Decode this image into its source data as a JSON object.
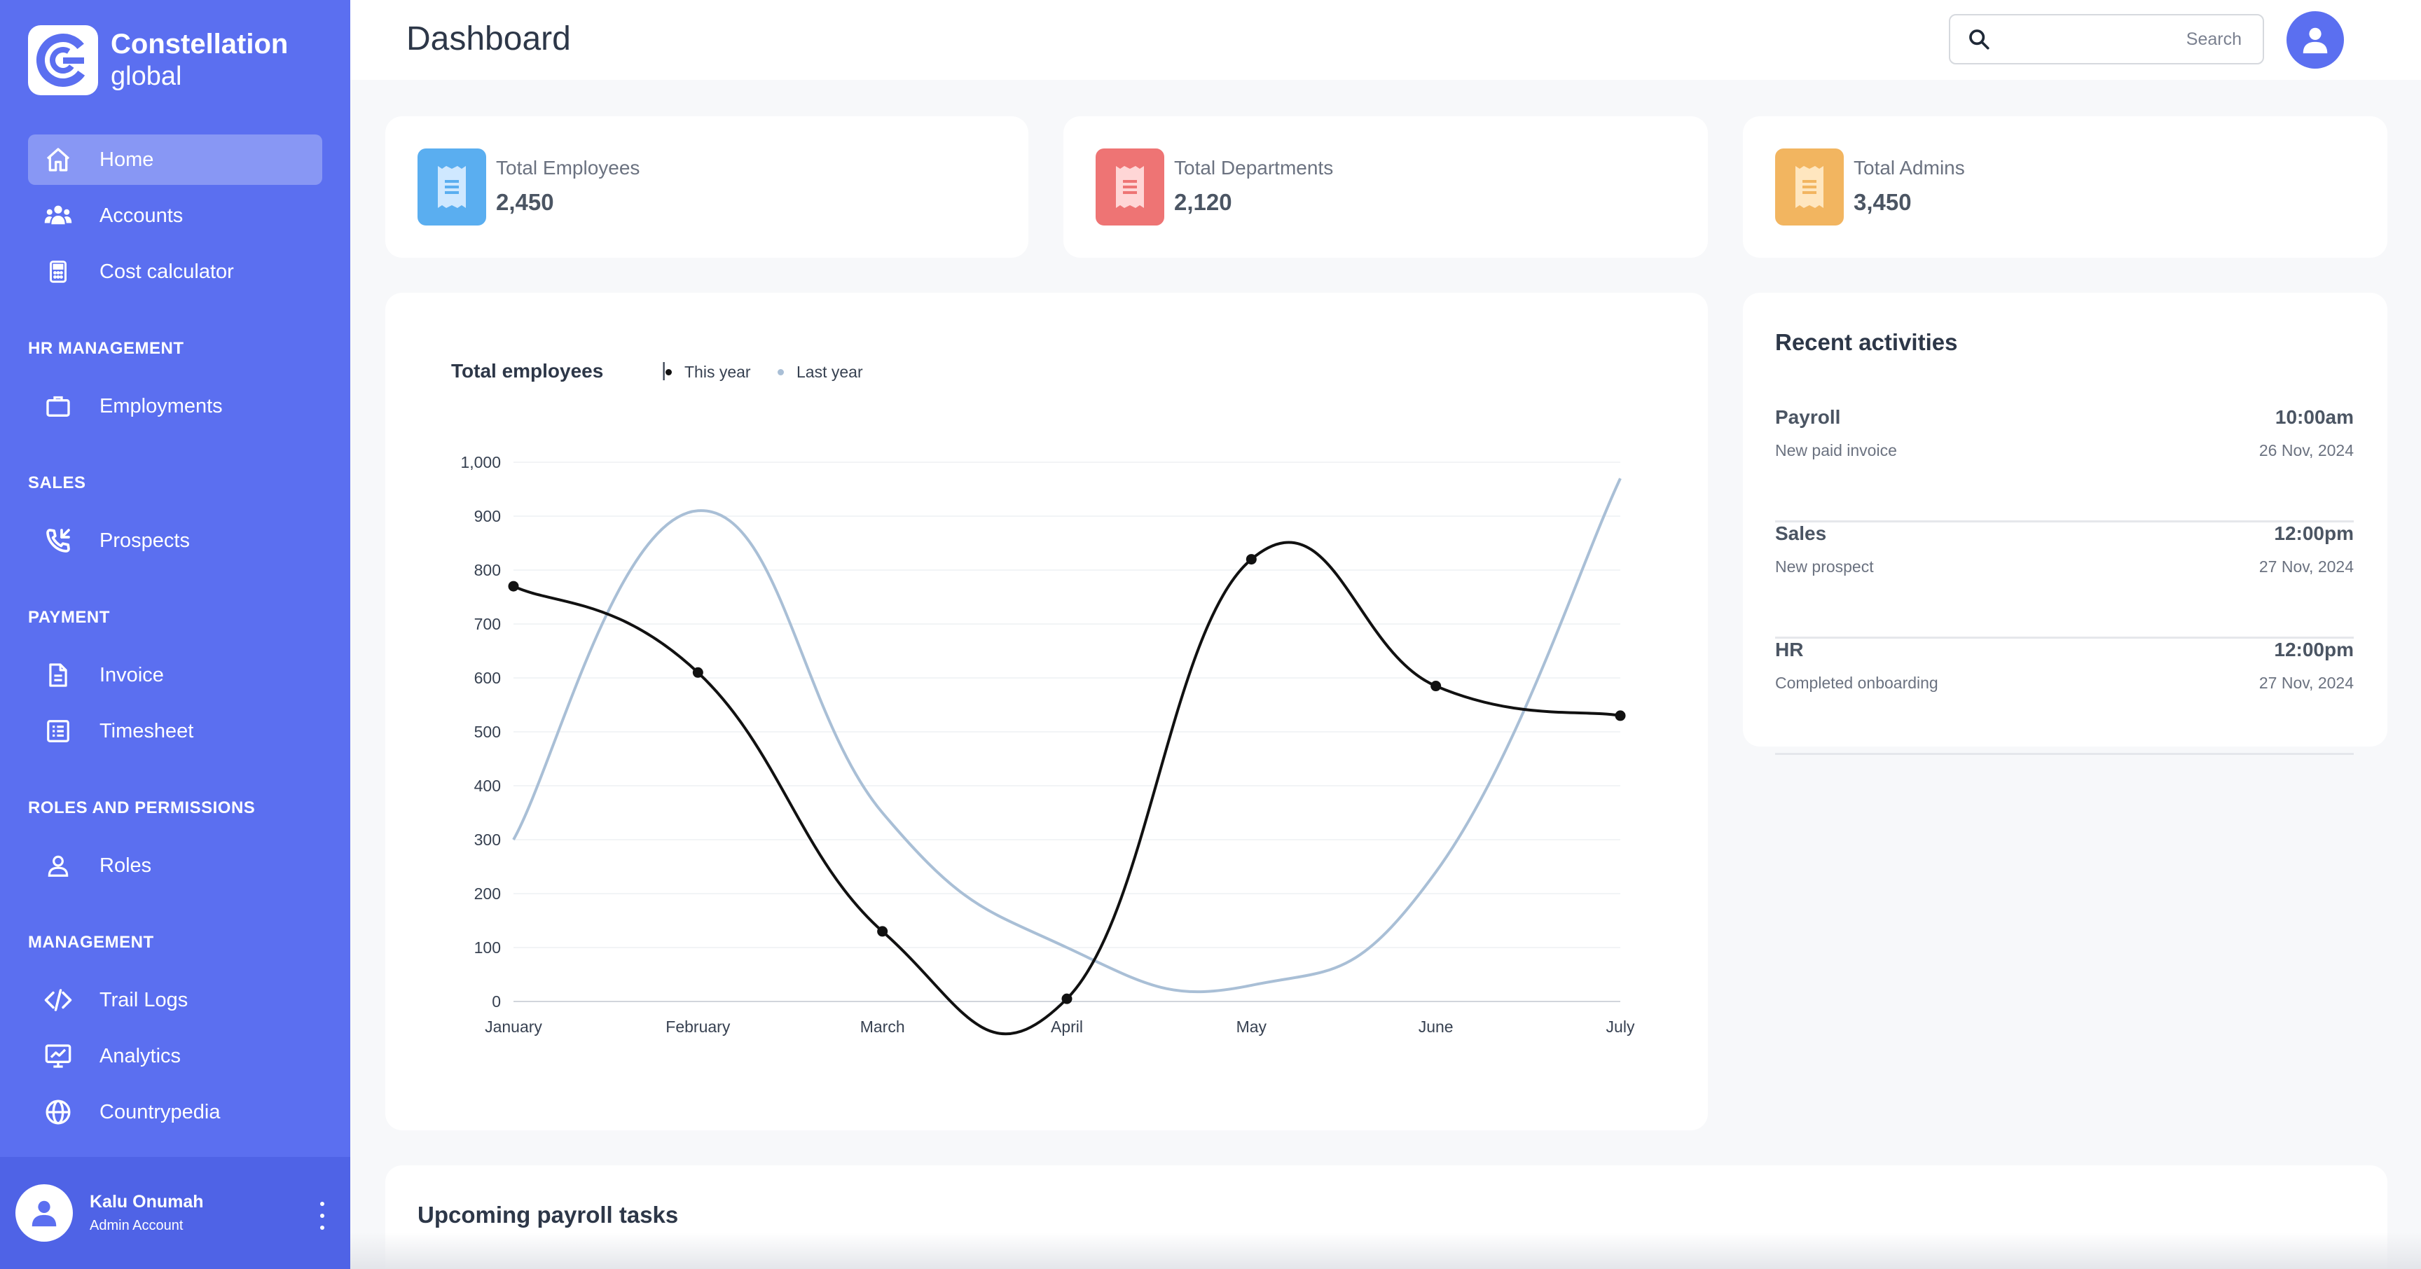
{
  "brand": {
    "name": "Constellation",
    "sub": "global"
  },
  "sidebar": {
    "items": [
      {
        "label": "Home",
        "icon": "home-icon"
      },
      {
        "label": "Accounts",
        "icon": "users-icon"
      },
      {
        "label": "Cost calculator",
        "icon": "calculator-icon"
      },
      {
        "label": "Employments",
        "icon": "briefcase-icon"
      },
      {
        "label": "Prospects",
        "icon": "phone-incoming-icon"
      },
      {
        "label": "Invoice",
        "icon": "document-icon"
      },
      {
        "label": "Timesheet",
        "icon": "list-icon"
      },
      {
        "label": "Roles",
        "icon": "user-icon"
      },
      {
        "label": "Trail Logs",
        "icon": "code-icon"
      },
      {
        "label": "Analytics",
        "icon": "monitor-chart-icon"
      },
      {
        "label": "Countrypedia",
        "icon": "globe-icon"
      }
    ],
    "sections": {
      "hr": "HR MANAGEMENT",
      "sales": "SALES",
      "payment": "PAYMENT",
      "roles": "ROLES AND PERMISSIONS",
      "management": "MANAGEMENT"
    }
  },
  "user": {
    "name": "Kalu Onumah",
    "role": "Admin Account"
  },
  "header": {
    "title": "Dashboard",
    "search_placeholder": "Search"
  },
  "stats": [
    {
      "label": "Total Employees",
      "value": "2,450",
      "color": "#5aaef0"
    },
    {
      "label": "Total Departments",
      "value": "2,120",
      "color": "#ee7474"
    },
    {
      "label": "Total Admins",
      "value": "3,450",
      "color": "#f2b560"
    }
  ],
  "activities": {
    "title": "Recent activities",
    "items": [
      {
        "name": "Payroll",
        "desc": "New paid invoice",
        "time": "10:00am",
        "date": "26 Nov, 2024"
      },
      {
        "name": "Sales",
        "desc": "New prospect",
        "time": "12:00pm",
        "date": "27 Nov, 2024"
      },
      {
        "name": "HR",
        "desc": "Completed onboarding",
        "time": "12:00pm",
        "date": "27 Nov, 2024"
      }
    ]
  },
  "payroll": {
    "title": "Upcoming payroll tasks"
  },
  "chart_data": {
    "type": "line",
    "title": "Total employees",
    "categories": [
      "January",
      "February",
      "March",
      "April",
      "May",
      "June",
      "July"
    ],
    "series": [
      {
        "name": "This year",
        "values": [
          770,
          610,
          130,
          5,
          820,
          585,
          530
        ],
        "color": "#111111"
      },
      {
        "name": "Last year",
        "values": [
          300,
          910,
          350,
          100,
          30,
          240,
          970
        ],
        "color": "#a9bfd6"
      }
    ],
    "yticks": [
      "0",
      "100",
      "200",
      "300",
      "400",
      "500",
      "600",
      "700",
      "800",
      "900",
      "1,000"
    ],
    "ylim": [
      0,
      1000
    ],
    "grid": true,
    "legend": "top-left"
  }
}
